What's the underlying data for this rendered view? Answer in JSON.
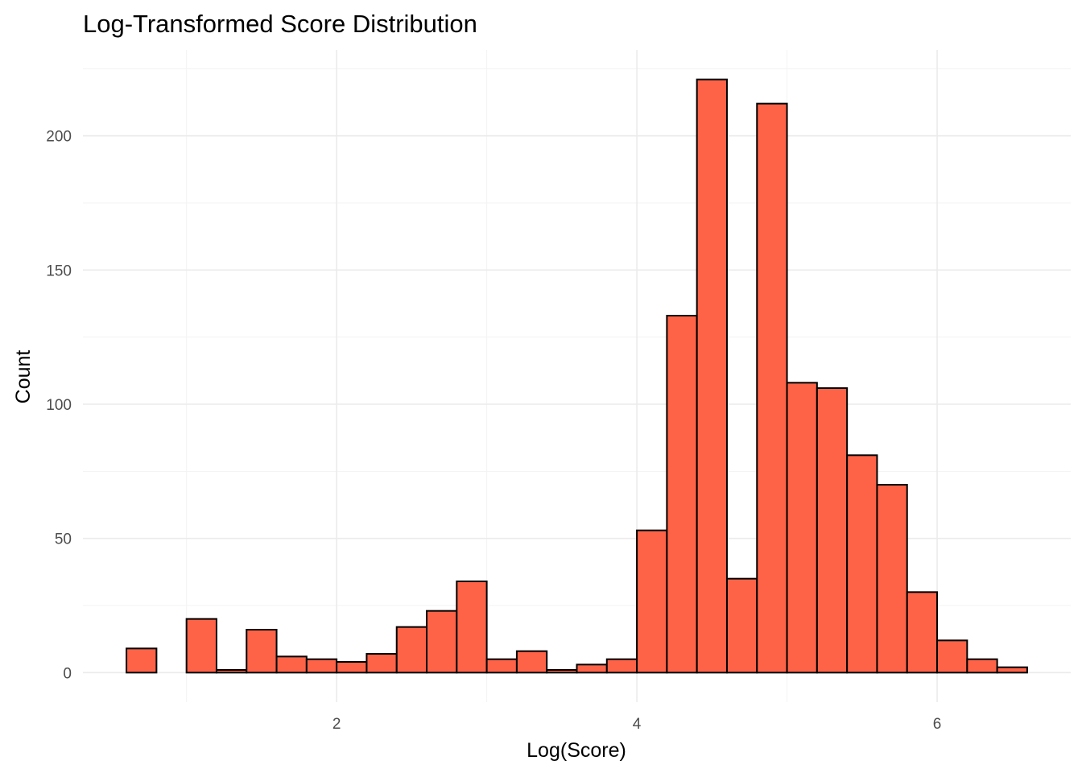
{
  "chart_data": {
    "type": "bar",
    "title": "Log-Transformed Score Distribution",
    "xlabel": "Log(Score)",
    "ylabel": "Count",
    "bar_color": "#FF6347",
    "bar_outline": "#000000",
    "bin_width": 0.2,
    "x": [
      0.7,
      0.9,
      1.1,
      1.3,
      1.5,
      1.7,
      1.9,
      2.1,
      2.3,
      2.5,
      2.7,
      2.9,
      3.1,
      3.3,
      3.5,
      3.7,
      3.9,
      4.1,
      4.3,
      4.5,
      4.7,
      4.9,
      5.1,
      5.3,
      5.5,
      5.7,
      5.9,
      6.1,
      6.3,
      6.5
    ],
    "values": [
      9,
      0,
      20,
      1,
      16,
      6,
      5,
      4,
      7,
      17,
      23,
      34,
      5,
      8,
      1,
      3,
      5,
      53,
      133,
      221,
      35,
      212,
      108,
      106,
      81,
      70,
      30,
      12,
      5,
      2
    ],
    "xlim": [
      0.31,
      6.89
    ],
    "ylim": [
      -11,
      232
    ],
    "x_ticks": [
      2,
      4,
      6
    ],
    "y_ticks": [
      0,
      50,
      100,
      150,
      200
    ],
    "x_tick_labels": [
      "2",
      "4",
      "6"
    ],
    "y_tick_labels": [
      "0",
      "50",
      "100",
      "150",
      "200"
    ],
    "grid": true
  }
}
